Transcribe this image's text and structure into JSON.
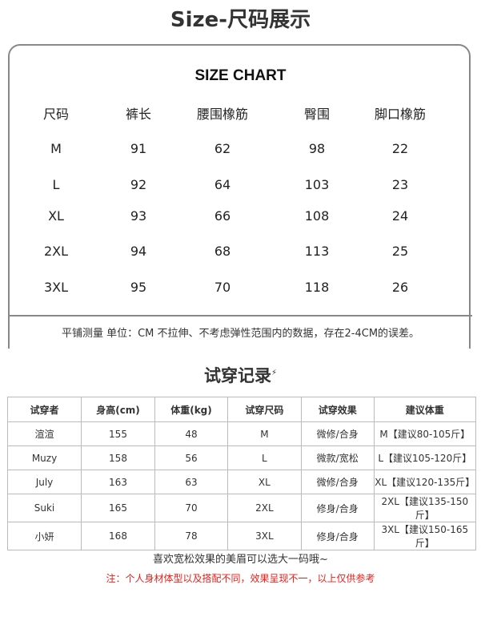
{
  "title": "Size-尺码展示",
  "size_chart": {
    "heading": "SIZE CHART",
    "headers": [
      "尺码",
      "裤长",
      "腰围橡筋",
      "臀围",
      "脚口橡筋"
    ],
    "rows": [
      [
        "M",
        "91",
        "62",
        "98",
        "22"
      ],
      [
        "L",
        "92",
        "64",
        "103",
        "23"
      ],
      [
        "XL",
        "93",
        "66",
        "108",
        "24"
      ],
      [
        "2XL",
        "94",
        "68",
        "113",
        "25"
      ],
      [
        "3XL",
        "95",
        "70",
        "118",
        "26"
      ]
    ],
    "note": "平铺测量  单位：CM 不拉伸、不考虑弹性范围内的数据，存在2-4CM的误差。"
  },
  "tryon": {
    "title": "试穿记录",
    "headers": [
      "试穿者",
      "身高(cm)",
      "体重(kg)",
      "试穿尺码",
      "试穿效果",
      "建议体重"
    ],
    "rows": [
      [
        "渲渲",
        "155",
        "48",
        "M",
        "微修/合身",
        "M【建议80-105斤】"
      ],
      [
        "Muzy",
        "158",
        "56",
        "L",
        "微款/宽松",
        "L【建议105-120斤】"
      ],
      [
        "July",
        "163",
        "63",
        "XL",
        "微修/合身",
        "XL【建议120-135斤】"
      ],
      [
        "Suki",
        "165",
        "70",
        "2XL",
        "修身/合身",
        "2XL【建议135-150斤】"
      ],
      [
        "小妍",
        "168",
        "78",
        "3XL",
        "修身/合身",
        "3XL【建议150-165斤】"
      ]
    ]
  },
  "footer": {
    "tip": "喜欢宽松效果的美眉可以选大一码哦~",
    "note": "注：个人身材体型以及搭配不同，效果呈现不一，以上仅供参考"
  },
  "colors": {
    "note_red": "#e8201b",
    "border": "#888888"
  }
}
